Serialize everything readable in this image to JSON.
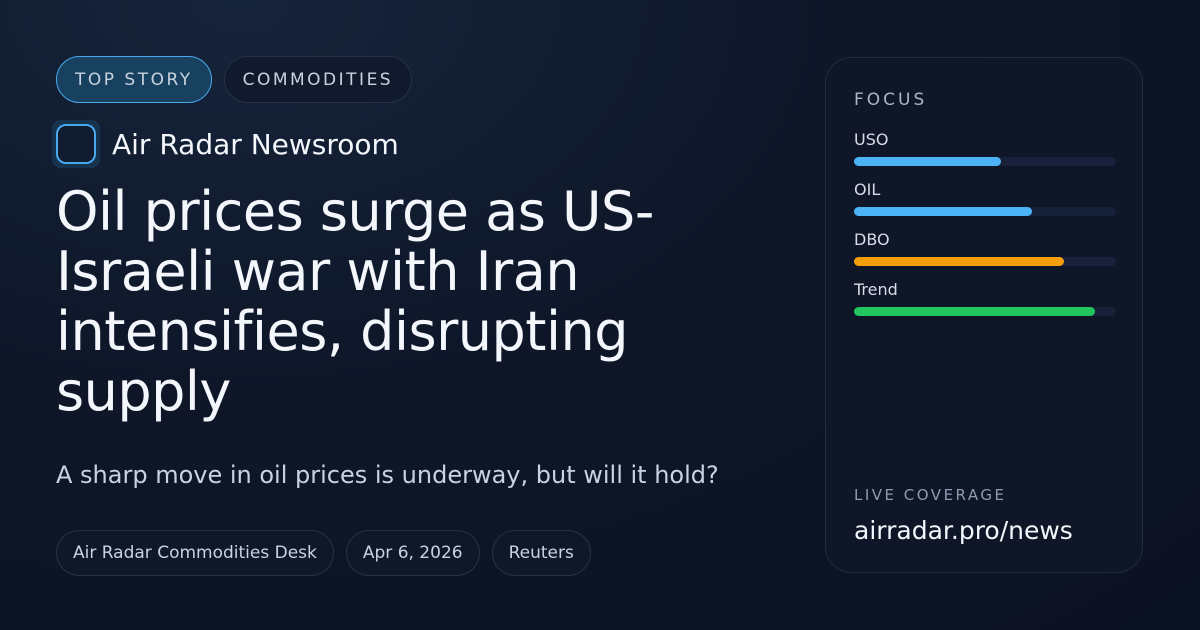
{
  "tags": [
    "TOP STORY",
    "COMMODITIES"
  ],
  "brand": {
    "name": "Air Radar Newsroom",
    "logo_icon": "rounded-square-icon"
  },
  "headline": "Oil prices surge as US-Israeli war with Iran intensifies, disrupting supply",
  "subheadline": "A sharp move in oil prices is underway, but will it hold?",
  "meta": [
    "Air Radar Commodities Desk",
    "Apr 6, 2026",
    "Reuters"
  ],
  "focus": {
    "title": "FOCUS",
    "items": [
      {
        "label": "USO",
        "percent": 56,
        "color": "#4db3f7"
      },
      {
        "label": "OIL",
        "percent": 68,
        "color": "#4db3f7"
      },
      {
        "label": "DBO",
        "percent": 80,
        "color": "#f59e0b"
      },
      {
        "label": "Trend",
        "percent": 92,
        "color": "#22c55e"
      }
    ]
  },
  "footer": {
    "label": "LIVE COVERAGE",
    "url": "airradar.pro/news"
  }
}
